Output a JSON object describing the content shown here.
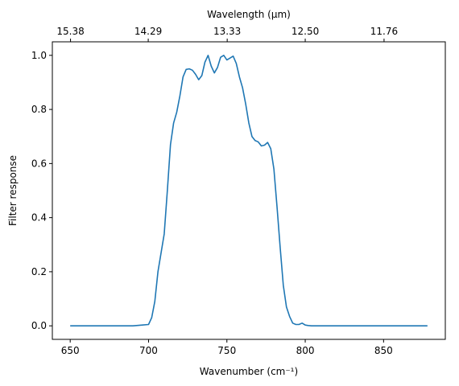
{
  "chart_data": {
    "type": "line",
    "title": "",
    "xlabel": "Wavenumber (cm⁻¹)",
    "ylabel": "Filter response",
    "x2label": "Wavelength (μm)",
    "xlim": [
      638.6,
      889.4
    ],
    "ylim": [
      -0.05,
      1.05
    ],
    "xticks": [
      650,
      700,
      750,
      800,
      850
    ],
    "yticks": [
      0.0,
      0.2,
      0.4,
      0.6,
      0.8,
      1.0
    ],
    "ytick_labels": [
      "0.0",
      "0.2",
      "0.4",
      "0.6",
      "0.8",
      "1.0"
    ],
    "x2ticks": [
      {
        "wavenumber": 650.2,
        "label": "15.38"
      },
      {
        "wavenumber": 699.8,
        "label": "14.29"
      },
      {
        "wavenumber": 750.2,
        "label": "13.33"
      },
      {
        "wavenumber": 800.0,
        "label": "12.50"
      },
      {
        "wavenumber": 850.3,
        "label": "11.76"
      }
    ],
    "grid": false,
    "color": "#1f77b4",
    "series": [
      {
        "x": [
          650,
          670,
          690,
          696,
          700,
          702,
          704,
          706,
          708,
          710,
          712,
          714,
          716,
          718,
          720,
          722,
          724,
          726,
          728,
          730,
          732,
          734,
          736,
          738,
          740,
          742,
          744,
          746,
          748,
          750,
          752,
          754,
          756,
          758,
          760,
          762,
          764,
          766,
          768,
          770,
          772,
          774,
          776,
          778,
          780,
          782,
          784,
          786,
          788,
          790,
          792,
          794,
          796,
          798,
          800,
          802,
          804,
          806,
          808,
          810,
          812,
          814,
          816,
          820,
          840,
          860,
          878
        ],
        "y": [
          0.0,
          0.0,
          0.0,
          0.003,
          0.005,
          0.03,
          0.09,
          0.2,
          0.27,
          0.34,
          0.5,
          0.67,
          0.75,
          0.79,
          0.85,
          0.92,
          0.948,
          0.95,
          0.945,
          0.93,
          0.91,
          0.925,
          0.975,
          1.0,
          0.96,
          0.935,
          0.955,
          0.993,
          1.0,
          0.983,
          0.99,
          0.997,
          0.97,
          0.92,
          0.88,
          0.82,
          0.75,
          0.7,
          0.685,
          0.68,
          0.665,
          0.668,
          0.678,
          0.655,
          0.58,
          0.44,
          0.29,
          0.15,
          0.07,
          0.035,
          0.01,
          0.005,
          0.005,
          0.01,
          0.003,
          0.001,
          0.0,
          0.0,
          0.0,
          0.0,
          0.0,
          0.0,
          0.0,
          0.0,
          0.0,
          0.0,
          0.0
        ]
      }
    ]
  }
}
